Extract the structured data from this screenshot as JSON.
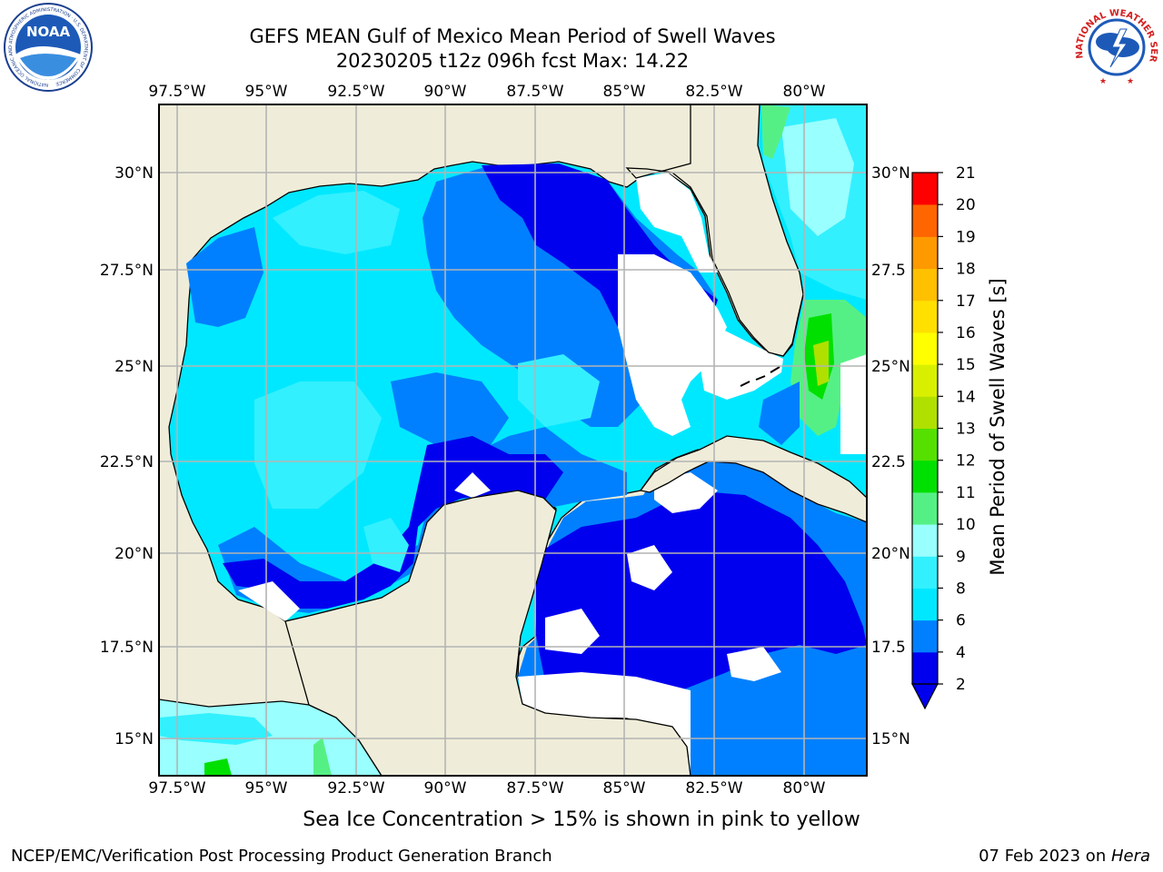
{
  "title_line1": "GEFS MEAN Gulf of Mexico Mean Period of Swell Waves",
  "title_line2": "20230205 t12z 096h fcst   Max: 14.22",
  "map": {
    "lon_labels": [
      "97.5°W",
      "95°W",
      "92.5°W",
      "90°W",
      "87.5°W",
      "85°W",
      "82.5°W",
      "80°W"
    ],
    "lat_labels_left": [
      "30°N",
      "27.5°N",
      "25°N",
      "22.5°N",
      "20°N",
      "17.5°N",
      "15°N"
    ],
    "lat_labels_right": [
      "30°N",
      "27.5",
      "25°N",
      "22.5",
      "20°N",
      "17.5",
      "15°N"
    ],
    "colors": {
      "land": "#efedd9",
      "no_data": "#ffffff",
      "grid": "#b4b4b4"
    }
  },
  "colorbar": {
    "label": "Mean Period of Swell Waves [s]",
    "ticks": [
      "2",
      "4",
      "6",
      "8",
      "9",
      "10",
      "11",
      "12",
      "13",
      "14",
      "15",
      "16",
      "17",
      "18",
      "19",
      "20",
      "21"
    ],
    "colors": [
      "#0000ee",
      "#0080ff",
      "#00e8ff",
      "#33f0ff",
      "#99ffff",
      "#55f085",
      "#00e000",
      "#55e000",
      "#b0e000",
      "#d8f000",
      "#ffff00",
      "#ffe000",
      "#ffc000",
      "#ff9900",
      "#ff6600",
      "#ff3300",
      "#ff0000"
    ]
  },
  "sea_ice_note": "Sea Ice Concentration > 15% is shown in pink to yellow",
  "footer_left": "NCEP/EMC/Verification Post Processing Product Generation Branch",
  "footer_right_prefix": "07 Feb 2023 on ",
  "footer_right_host": "Hera",
  "logos": {
    "noaa": "NOAA",
    "noaa_ring": "NATIONAL OCEANIC AND ATMOSPHERIC ADMINISTRATION · U.S. DEPARTMENT OF COMMERCE",
    "nws_ring": "NATIONAL WEATHER SERVICE"
  }
}
